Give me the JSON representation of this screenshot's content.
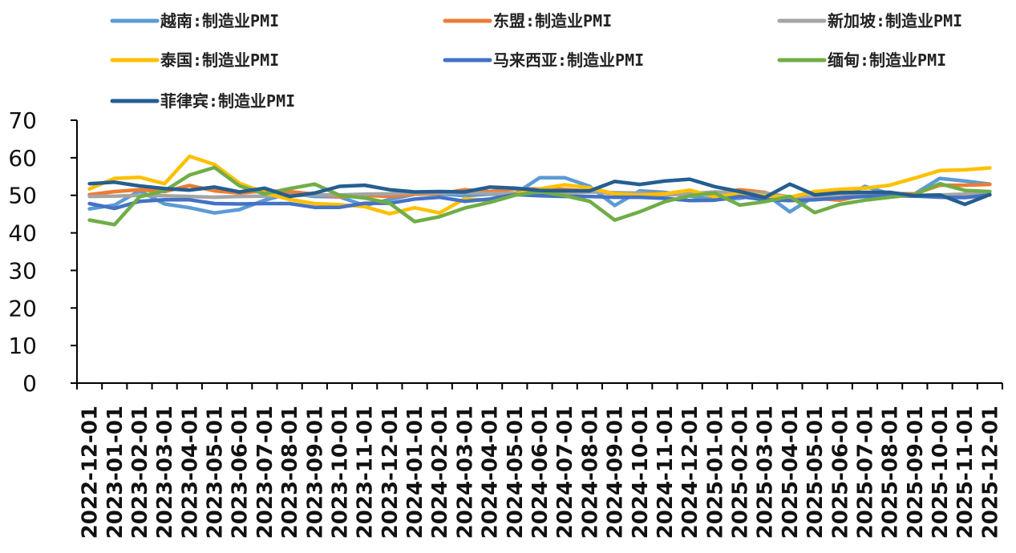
{
  "chart_data": {
    "type": "line",
    "title": "",
    "xlabel": "",
    "ylabel": "",
    "ylim": [
      0,
      70
    ],
    "yticks": [
      0,
      10,
      20,
      30,
      40,
      50,
      60,
      70
    ],
    "grid": false,
    "legend_position": "top",
    "categories": [
      "2022-12-01",
      "2023-01-01",
      "2023-02-01",
      "2023-03-01",
      "2023-04-01",
      "2023-05-01",
      "2023-06-01",
      "2023-07-01",
      "2023-08-01",
      "2023-09-01",
      "2023-10-01",
      "2023-11-01",
      "2023-12-01",
      "2024-01-01",
      "2024-02-01",
      "2024-03-01",
      "2024-04-01",
      "2024-05-01",
      "2024-06-01",
      "2024-07-01",
      "2024-08-01",
      "2024-09-01",
      "2024-10-01",
      "2024-11-01",
      "2024-12-01",
      "2025-01-01",
      "2025-02-01",
      "2025-03-01",
      "2025-04-01",
      "2025-05-01",
      "2025-06-01",
      "2025-07-01",
      "2025-08-01",
      "2025-09-01",
      "2025-10-01",
      "2025-11-01",
      "2025-12-01"
    ],
    "series": [
      {
        "name": "越南:制造业PMI",
        "color": "#5B9BD5",
        "values": [
          46.4,
          47.4,
          51.2,
          47.7,
          46.7,
          45.3,
          46.2,
          48.7,
          50.5,
          49.7,
          49.6,
          47.3,
          48.9,
          50.3,
          50.4,
          49.9,
          50.3,
          50.3,
          54.7,
          54.7,
          52.4,
          47.3,
          51.2,
          50.8,
          49.8,
          48.9,
          49.2,
          50.5,
          45.6,
          49.8,
          48.9,
          52.4,
          50.4,
          50.4,
          54.5,
          53.8,
          53.0
        ]
      },
      {
        "name": "东盟:制造业PMI",
        "color": "#ED7D31",
        "values": [
          50.2,
          51.0,
          51.5,
          51.0,
          52.6,
          51.2,
          50.6,
          51.2,
          51.0,
          50.3,
          49.6,
          50.0,
          49.7,
          50.3,
          50.4,
          51.5,
          51.0,
          51.7,
          51.7,
          51.6,
          51.1,
          50.5,
          50.5,
          50.5,
          50.7,
          50.4,
          51.5,
          50.8,
          48.7,
          49.2,
          48.7,
          50.1,
          50.3,
          50.4,
          52.7,
          52.7,
          52.9
        ]
      },
      {
        "name": "新加坡:制造业PMI",
        "color": "#A5A5A5",
        "values": [
          49.7,
          49.8,
          50.0,
          49.9,
          49.7,
          49.5,
          49.7,
          49.8,
          49.9,
          50.1,
          50.1,
          50.3,
          50.4,
          50.7,
          50.6,
          50.7,
          50.5,
          50.6,
          50.4,
          50.4,
          50.9,
          50.7,
          50.6,
          50.0,
          50.5,
          50.9,
          50.7,
          50.6,
          49.6,
          49.6,
          50.3,
          50.0,
          50.1,
          50.0,
          50.1,
          50.3,
          50.2
        ]
      },
      {
        "name": "泰国:制造业PMI",
        "color": "#FFC000",
        "values": [
          51.7,
          54.5,
          54.8,
          53.1,
          60.4,
          58.2,
          53.2,
          50.7,
          48.9,
          47.8,
          47.5,
          47.0,
          45.1,
          46.7,
          45.3,
          49.1,
          48.6,
          50.3,
          51.7,
          52.8,
          52.0,
          50.4,
          50.0,
          50.4,
          51.4,
          49.6,
          50.5,
          49.9,
          49.5,
          51.0,
          51.6,
          51.9,
          52.7,
          54.6,
          56.6,
          56.8,
          57.3
        ]
      },
      {
        "name": "马来西亚:制造业PMI",
        "color": "#4472C4",
        "values": [
          47.8,
          46.5,
          48.4,
          48.8,
          48.8,
          47.8,
          47.7,
          47.8,
          47.8,
          46.8,
          46.8,
          47.9,
          47.9,
          49.0,
          49.5,
          48.4,
          49.0,
          50.2,
          49.9,
          49.7,
          49.7,
          49.5,
          49.5,
          49.2,
          48.6,
          48.7,
          49.7,
          48.8,
          48.6,
          48.8,
          49.3,
          49.7,
          49.9,
          49.8,
          49.5,
          49.4,
          50.1
        ]
      },
      {
        "name": "缅甸:制造业PMI",
        "color": "#70AD47",
        "values": [
          43.4,
          42.2,
          49.6,
          51.2,
          55.4,
          57.4,
          52.5,
          50.4,
          51.8,
          53.0,
          50.0,
          49.3,
          47.9,
          43.0,
          44.3,
          46.6,
          48.1,
          50.0,
          51.0,
          49.9,
          48.4,
          43.4,
          45.6,
          48.3,
          49.9,
          50.6,
          47.4,
          48.3,
          49.7,
          45.4,
          47.6,
          48.7,
          49.5,
          50.2,
          53.1,
          51.3,
          51.0
        ]
      },
      {
        "name": "菲律宾:制造业PMI",
        "color": "#255E91",
        "values": [
          53.1,
          53.5,
          52.5,
          51.8,
          51.4,
          52.2,
          50.9,
          51.9,
          49.7,
          50.6,
          52.4,
          52.7,
          51.5,
          50.9,
          51.0,
          50.9,
          52.2,
          51.9,
          51.3,
          51.2,
          51.2,
          53.7,
          52.9,
          53.8,
          54.3,
          52.3,
          51.0,
          49.4,
          53.0,
          50.1,
          50.7,
          50.8,
          50.8,
          49.9,
          50.1,
          47.6,
          50.2
        ]
      }
    ]
  }
}
